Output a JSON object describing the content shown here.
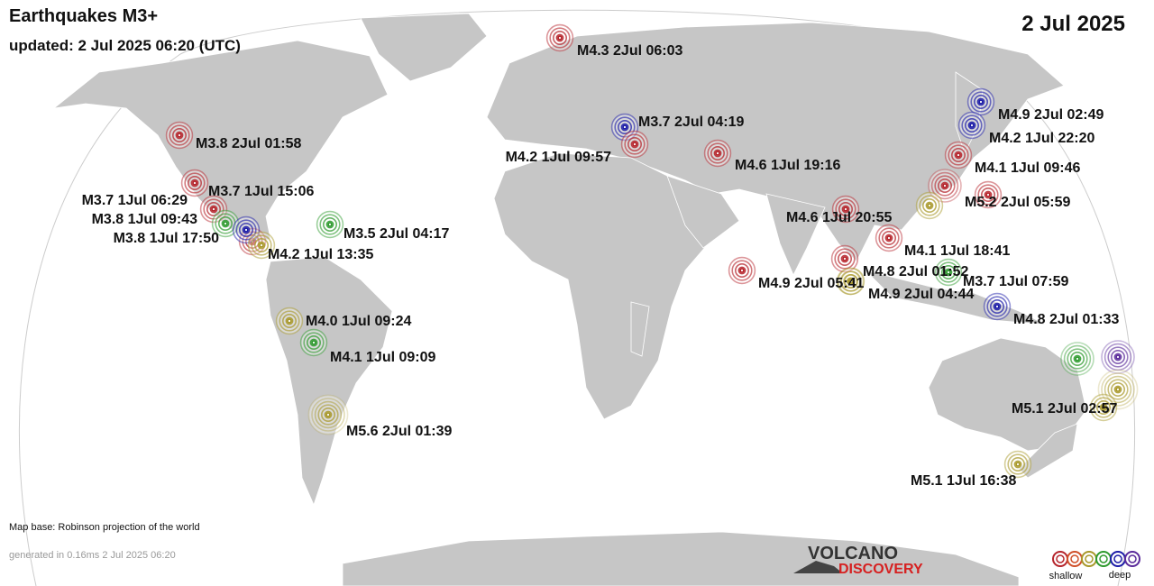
{
  "header": {
    "title": "Earthquakes M3+",
    "updated": "updated:  2 Jul 2025 06:20 (UTC)",
    "date": "2 Jul 2025"
  },
  "quakes": [
    {
      "label": "M4.3  2Jul 06:03",
      "color": "#b5242b"
    },
    {
      "label": "M3.7  2Jul 04:19",
      "color": "#1c1ca8"
    },
    {
      "label": "M4.2  1Jul 09:57",
      "color": "#b5242b"
    },
    {
      "label": "M4.6  1Jul 19:16",
      "color": "#b5242b"
    },
    {
      "label": "M4.9  2Jul 02:49",
      "color": "#1c1ca8"
    },
    {
      "label": "M4.2  1Jul 22:20",
      "color": "#1c1ca8"
    },
    {
      "label": "M4.1  1Jul 09:46",
      "color": "#b5242b"
    },
    {
      "label": "M5.2  2Jul 05:59",
      "color": "#b5242b"
    },
    {
      "label": "M4.6  1Jul 20:55",
      "color": "#b5242b"
    },
    {
      "label": "M4.1  1Jul 18:41",
      "color": "#b5242b"
    },
    {
      "label": "M4.8  2Jul 01:52",
      "color": "#b5242b"
    },
    {
      "label": "M3.7  1Jul 07:59",
      "color": "#2e9a2e"
    },
    {
      "label": "M4.9  2Jul 05:41",
      "color": "#b5242b"
    },
    {
      "label": "M4.9  2Jul 04:44",
      "color": "#a8982a"
    },
    {
      "label": "M4.8  2Jul 01:33",
      "color": "#1c1ca8"
    },
    {
      "label": "M5.1  2Jul 02:57",
      "color": "#a8982a"
    },
    {
      "label": "M5.1  1Jul 16:38",
      "color": "#a8982a"
    },
    {
      "label": "M3.8  2Jul 01:58",
      "color": "#b5242b"
    },
    {
      "label": "M3.7  1Jul 15:06",
      "color": "#b5242b"
    },
    {
      "label": "M3.7  1Jul 06:29",
      "color": "#b5242b"
    },
    {
      "label": "M3.8  1Jul 09:43",
      "color": "#2e9a2e"
    },
    {
      "label": "M3.8  1Jul 17:50",
      "color": "#1c1ca8"
    },
    {
      "label": "M4.2  1Jul 13:35",
      "color": "#a8982a"
    },
    {
      "label": "M3.5  2Jul 04:17",
      "color": "#2e9a2e"
    },
    {
      "label": "M4.0  1Jul 09:24",
      "color": "#a8982a"
    },
    {
      "label": "M4.1  1Jul 09:09",
      "color": "#2e9a2e"
    },
    {
      "label": "M5.6  2Jul 01:39",
      "color": "#a8982a"
    }
  ],
  "footer": {
    "map_base": "Map base: Robinson projection of the world",
    "generated": "generated in 0.16ms  2 Jul 2025 06:20"
  },
  "logo": {
    "line1": "VOLCANO",
    "line2": "DISCOVERY"
  },
  "legend": {
    "shallow": "shallow",
    "deep": "deep"
  }
}
